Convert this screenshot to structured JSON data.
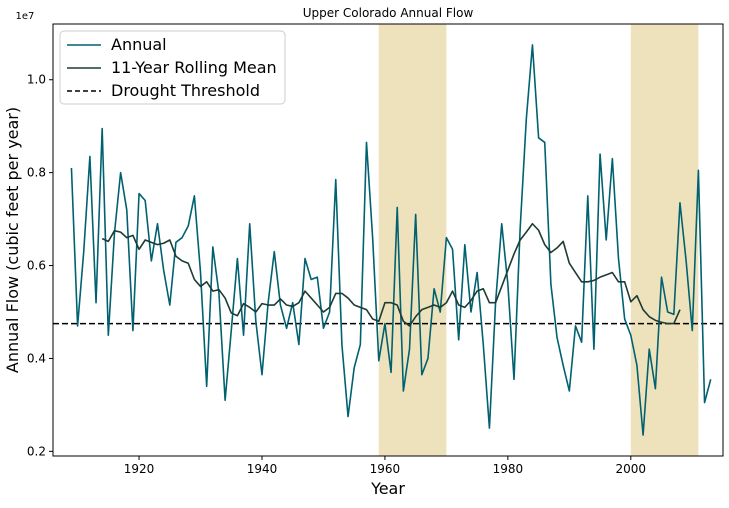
{
  "chart_data": {
    "type": "line",
    "title": "Upper Colorado Annual Flow",
    "xlabel": "Year",
    "ylabel": "Annual Flow (cubic feet per year)",
    "y_offset_label": "1e7",
    "xlim": [
      1906,
      2015
    ],
    "ylim": [
      0.19,
      1.12
    ],
    "y_scale_note": "values in units of 1e7 cubic feet per year",
    "x_ticks": [
      1920,
      1940,
      1960,
      1980,
      2000
    ],
    "x_tick_labels": [
      "1920",
      "1940",
      "1960",
      "1980",
      "2000"
    ],
    "y_ticks": [
      0.2,
      0.4,
      0.6,
      0.8,
      1.0
    ],
    "y_tick_labels": [
      "0.2",
      "0.4",
      "0.6",
      "0.8",
      "1.0"
    ],
    "grid": false,
    "legend_position": "top-left",
    "colors": {
      "annual": "#006170",
      "rolling": "#1c3c34",
      "threshold": "#000000",
      "shade": "#eee2bc"
    },
    "drought_periods": [
      {
        "start": 1959,
        "end": 1970
      },
      {
        "start": 2000,
        "end": 2011
      }
    ],
    "threshold_value": 0.475,
    "legend": [
      {
        "label": "Annual",
        "style": "solid",
        "color": "#006170"
      },
      {
        "label": "11-Year Rolling Mean",
        "style": "solid",
        "color": "#1c3c34"
      },
      {
        "label": "Drought Threshold",
        "style": "dashed",
        "color": "#000000"
      }
    ],
    "series": [
      {
        "name": "Annual",
        "color": "#006170",
        "x": [
          1909,
          1910,
          1911,
          1912,
          1913,
          1914,
          1915,
          1916,
          1917,
          1918,
          1919,
          1920,
          1921,
          1922,
          1923,
          1924,
          1925,
          1926,
          1927,
          1928,
          1929,
          1930,
          1931,
          1932,
          1933,
          1934,
          1935,
          1936,
          1937,
          1938,
          1939,
          1940,
          1941,
          1942,
          1943,
          1944,
          1945,
          1946,
          1947,
          1948,
          1949,
          1950,
          1951,
          1952,
          1953,
          1954,
          1955,
          1956,
          1957,
          1958,
          1959,
          1960,
          1961,
          1962,
          1963,
          1964,
          1965,
          1966,
          1967,
          1968,
          1969,
          1970,
          1971,
          1972,
          1973,
          1974,
          1975,
          1976,
          1977,
          1978,
          1979,
          1980,
          1981,
          1982,
          1983,
          1984,
          1985,
          1986,
          1987,
          1988,
          1989,
          1990,
          1991,
          1992,
          1993,
          1994,
          1995,
          1996,
          1997,
          1998,
          1999,
          2000,
          2001,
          2002,
          2003,
          2004,
          2005,
          2006,
          2007,
          2008,
          2009,
          2010,
          2011,
          2012,
          2013
        ],
        "values": [
          0.81,
          0.47,
          0.63,
          0.835,
          0.52,
          0.895,
          0.45,
          0.67,
          0.8,
          0.72,
          0.46,
          0.755,
          0.74,
          0.61,
          0.69,
          0.59,
          0.515,
          0.65,
          0.66,
          0.685,
          0.75,
          0.585,
          0.34,
          0.64,
          0.54,
          0.31,
          0.46,
          0.615,
          0.45,
          0.69,
          0.48,
          0.365,
          0.52,
          0.63,
          0.515,
          0.465,
          0.52,
          0.43,
          0.615,
          0.57,
          0.575,
          0.465,
          0.5,
          0.785,
          0.43,
          0.275,
          0.38,
          0.43,
          0.865,
          0.66,
          0.395,
          0.475,
          0.37,
          0.725,
          0.33,
          0.42,
          0.71,
          0.365,
          0.4,
          0.55,
          0.5,
          0.66,
          0.635,
          0.44,
          0.645,
          0.5,
          0.585,
          0.43,
          0.25,
          0.52,
          0.69,
          0.56,
          0.355,
          0.68,
          0.915,
          1.075,
          0.875,
          0.865,
          0.56,
          0.445,
          0.385,
          0.33,
          0.47,
          0.435,
          0.75,
          0.42,
          0.84,
          0.655,
          0.83,
          0.615,
          0.485,
          0.45,
          0.385,
          0.235,
          0.42,
          0.335,
          0.575,
          0.5,
          0.495,
          0.735,
          0.61,
          0.46,
          0.805,
          0.305,
          0.355
        ]
      },
      {
        "name": "11-Year Rolling Mean",
        "color": "#1c3c34",
        "x": [
          1914,
          1915,
          1916,
          1917,
          1918,
          1919,
          1920,
          1921,
          1922,
          1923,
          1924,
          1925,
          1926,
          1927,
          1928,
          1929,
          1930,
          1931,
          1932,
          1933,
          1934,
          1935,
          1936,
          1937,
          1938,
          1939,
          1940,
          1941,
          1942,
          1943,
          1944,
          1945,
          1946,
          1947,
          1948,
          1949,
          1950,
          1951,
          1952,
          1953,
          1954,
          1955,
          1956,
          1957,
          1958,
          1959,
          1960,
          1961,
          1962,
          1963,
          1964,
          1965,
          1966,
          1967,
          1968,
          1969,
          1970,
          1971,
          1972,
          1973,
          1974,
          1975,
          1976,
          1977,
          1978,
          1979,
          1980,
          1981,
          1982,
          1983,
          1984,
          1985,
          1986,
          1987,
          1988,
          1989,
          1990,
          1991,
          1992,
          1993,
          1994,
          1995,
          1996,
          1997,
          1998,
          1999,
          2000,
          2001,
          2002,
          2003,
          2004,
          2005,
          2006,
          2007,
          2008
        ],
        "values": [
          0.658,
          0.652,
          0.675,
          0.672,
          0.66,
          0.665,
          0.635,
          0.655,
          0.65,
          0.645,
          0.648,
          0.655,
          0.62,
          0.61,
          0.605,
          0.57,
          0.555,
          0.565,
          0.545,
          0.548,
          0.53,
          0.498,
          0.492,
          0.518,
          0.51,
          0.5,
          0.518,
          0.515,
          0.515,
          0.528,
          0.515,
          0.512,
          0.52,
          0.545,
          0.53,
          0.515,
          0.5,
          0.51,
          0.54,
          0.54,
          0.53,
          0.515,
          0.51,
          0.505,
          0.485,
          0.48,
          0.52,
          0.52,
          0.515,
          0.48,
          0.47,
          0.49,
          0.505,
          0.51,
          0.515,
          0.51,
          0.52,
          0.545,
          0.515,
          0.51,
          0.525,
          0.545,
          0.55,
          0.52,
          0.52,
          0.555,
          0.59,
          0.625,
          0.655,
          0.672,
          0.69,
          0.676,
          0.645,
          0.628,
          0.638,
          0.652,
          0.605,
          0.585,
          0.565,
          0.565,
          0.568,
          0.575,
          0.58,
          0.585,
          0.565,
          0.565,
          0.522,
          0.535,
          0.505,
          0.49,
          0.482,
          0.478,
          0.475,
          0.475,
          0.505
        ]
      }
    ]
  }
}
